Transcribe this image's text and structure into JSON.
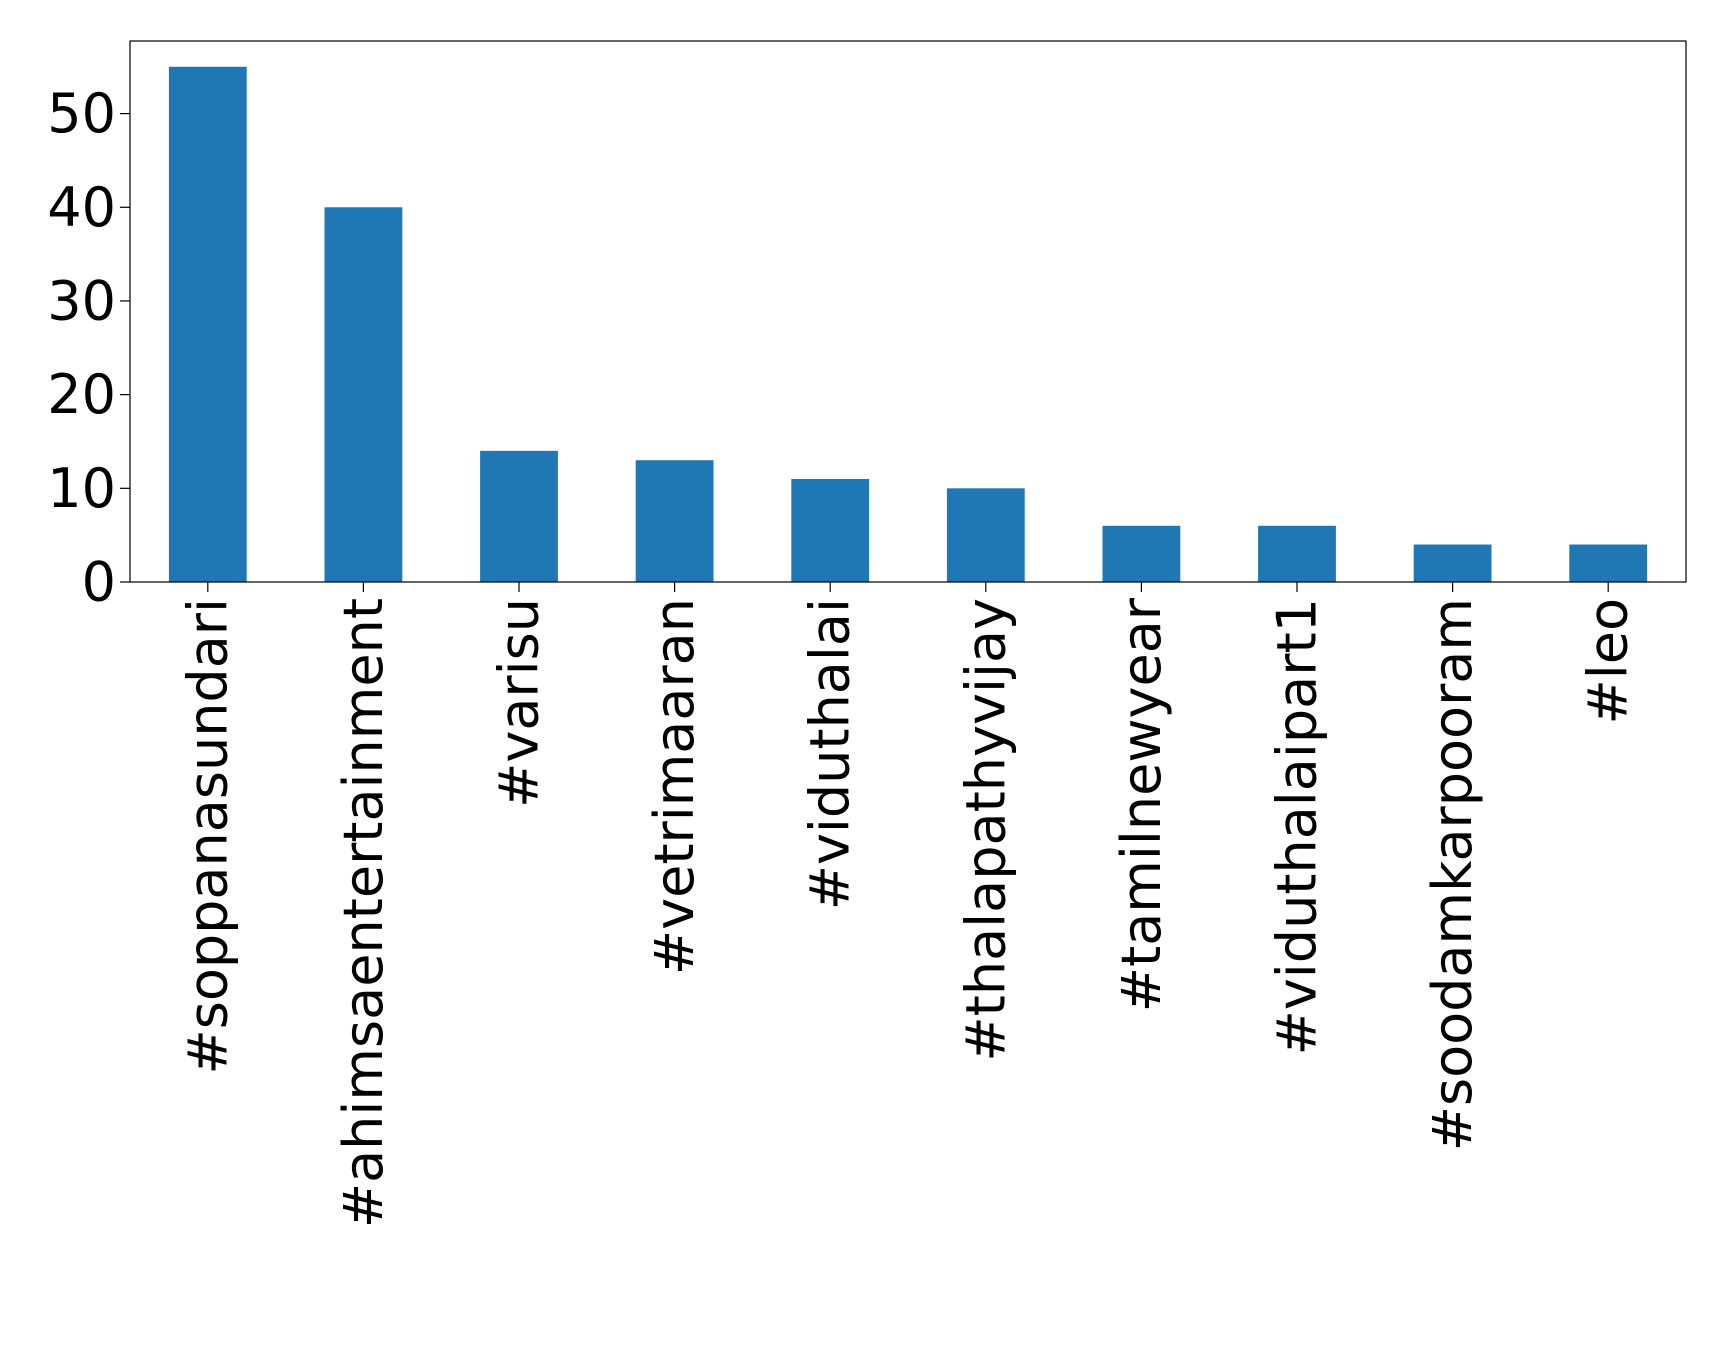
{
  "chart_data": {
    "type": "bar",
    "title": "",
    "xlabel": "",
    "ylabel": "",
    "categories": [
      "#soppanasundari",
      "#ahimsaentertainment",
      "#varisu",
      "#vetrimaaran",
      "#viduthalai",
      "#thalapathyvijay",
      "#tamilnewyear",
      "#viduthalaipart1",
      "#soodamkarpooram",
      "#leo"
    ],
    "values": [
      55,
      40,
      14,
      13,
      11,
      10,
      6,
      6,
      4,
      4
    ],
    "ylim": [
      0,
      57.75
    ],
    "yticks": [
      0,
      10,
      20,
      30,
      40,
      50
    ],
    "grid": false,
    "legend": "none",
    "colors": {
      "bar": "#1f77b4",
      "axis": "#000000",
      "background": "#ffffff"
    }
  }
}
